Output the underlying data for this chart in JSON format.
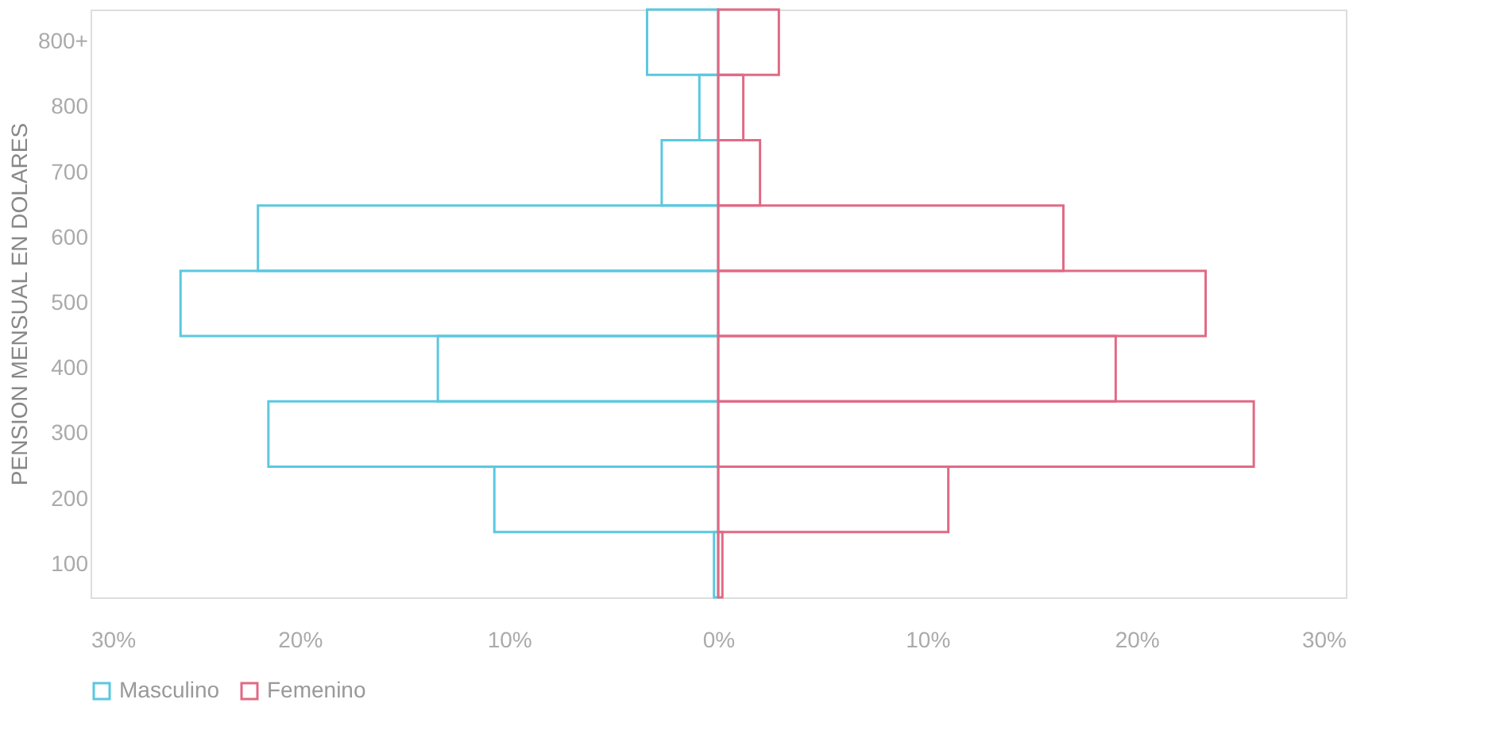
{
  "chart_data": {
    "type": "bar",
    "orientation": "horizontal",
    "categories": [
      "800+",
      "800",
      "700",
      "600",
      "500",
      "400",
      "300",
      "200",
      "100"
    ],
    "ylabel": "PENSION MENSUAL EN DOLARES",
    "series": [
      {
        "name": "Masculino",
        "color": "#5bc8e0",
        "values": [
          -3.4,
          -0.9,
          -2.7,
          -22.0,
          -25.7,
          -13.4,
          -21.5,
          -10.7,
          -0.2
        ]
      },
      {
        "name": "Femenino",
        "color": "#e06a85",
        "values": [
          2.9,
          1.2,
          2.0,
          16.5,
          23.3,
          19.0,
          25.6,
          11.0,
          0.2
        ]
      }
    ],
    "xlim": [
      -30,
      30
    ],
    "xticks": [
      {
        "value": -30,
        "label": "30%"
      },
      {
        "value": -20,
        "label": "20%"
      },
      {
        "value": -10,
        "label": "10%"
      },
      {
        "value": 0,
        "label": "0%"
      },
      {
        "value": 10,
        "label": "10%"
      },
      {
        "value": 20,
        "label": "20%"
      },
      {
        "value": 30,
        "label": "30%"
      }
    ],
    "grid": false,
    "legend": "bottom"
  }
}
